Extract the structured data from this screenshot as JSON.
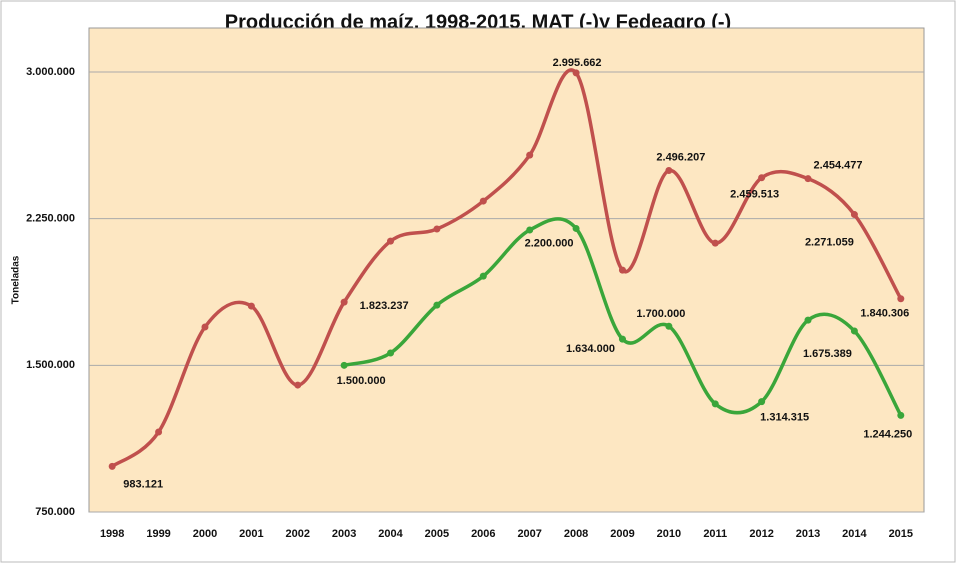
{
  "chart_data": {
    "type": "line",
    "title": "Producción de maíz, 1998-2015, MAT (-)y Fedeagro (-)",
    "y_label": "Toneladas",
    "categories": [
      "1998",
      "1999",
      "2000",
      "2001",
      "2002",
      "2003",
      "2004",
      "2005",
      "2006",
      "2007",
      "2008",
      "2009",
      "2010",
      "2011",
      "2012",
      "2013",
      "2014",
      "2015"
    ],
    "series": [
      {
        "name": "MAT",
        "color": "#c0504d",
        "values": [
          983121,
          1159000,
          1696000,
          1803000,
          1399000,
          1823237,
          2135000,
          2197000,
          2340000,
          2575000,
          2995662,
          1987000,
          2496207,
          2125000,
          2459513,
          2454477,
          2271059,
          1840306
        ],
        "value_labels": [
          "983.121",
          null,
          null,
          null,
          null,
          "1.823.237",
          null,
          null,
          null,
          null,
          "2.995.662",
          null,
          "2.496.207",
          null,
          "2.459.513",
          "2.454.477",
          "2.271.059",
          "1.840.306"
        ]
      },
      {
        "name": "Fedeagro",
        "color": "#3aa63a",
        "values": [
          null,
          null,
          null,
          null,
          null,
          1500000,
          1563000,
          1808000,
          1956000,
          2192000,
          2200000,
          1634000,
          1700000,
          1303000,
          1314315,
          1731000,
          1675389,
          1244250
        ],
        "value_labels": [
          null,
          null,
          null,
          null,
          null,
          "1.500.000",
          null,
          null,
          null,
          null,
          "2.200.000",
          "1.634.000",
          "1.700.000",
          null,
          "1.314.315",
          null,
          "1.675.389",
          "1.244.250"
        ]
      }
    ],
    "ylim": [
      750000,
      3225000
    ],
    "yticks": [
      {
        "value": 750000,
        "label": "750.000"
      },
      {
        "value": 1500000,
        "label": "1.500.000"
      },
      {
        "value": 2250000,
        "label": "2.250.000"
      },
      {
        "value": 3000000,
        "label": "3.000.000"
      }
    ],
    "grid": true
  }
}
